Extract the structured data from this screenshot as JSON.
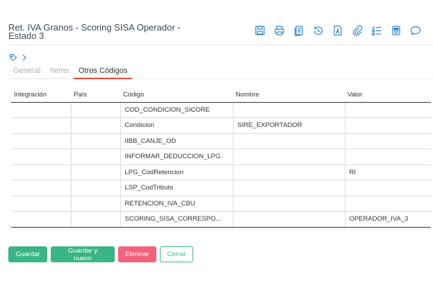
{
  "header": {
    "title": "Ret. IVA Granos - Scoring SISA Operador - Estado 3"
  },
  "toolbar": [
    {
      "name": "save-icon"
    },
    {
      "name": "print-icon"
    },
    {
      "name": "copy-icon"
    },
    {
      "name": "history-icon"
    },
    {
      "name": "pdf-icon"
    },
    {
      "name": "attach-icon"
    },
    {
      "name": "checklist-icon"
    },
    {
      "name": "notes-icon"
    },
    {
      "name": "comment-icon"
    }
  ],
  "tabs": [
    {
      "label": "General"
    },
    {
      "label": "Items"
    },
    {
      "label": "Otros Códigos"
    }
  ],
  "table": {
    "headers": [
      "Integración",
      "País",
      "Código",
      "Nombre",
      "Valor"
    ],
    "rows": [
      [
        "",
        "",
        "COD_CONDICION_SICORE",
        "",
        ""
      ],
      [
        "",
        "",
        "Condicion",
        "SIRE_EXPORTADOR",
        ""
      ],
      [
        "",
        "",
        "IIBB_CANJE_OD",
        "",
        ""
      ],
      [
        "",
        "",
        "INFORMAR_DEDUCCION_LPG",
        "",
        ""
      ],
      [
        "",
        "",
        "LPG_CodRetencion",
        "",
        "RI"
      ],
      [
        "",
        "",
        "LSP_CodTributo",
        "",
        ""
      ],
      [
        "",
        "",
        "RETENCION_IVA_CBU",
        "",
        ""
      ],
      [
        "",
        "",
        "SCORING_SISA_CORRESPO...",
        "",
        "OPERADOR_IVA_3"
      ]
    ]
  },
  "buttons": {
    "save": "Guardar",
    "save_new": "Guardar y nuevo",
    "delete": "Eliminar",
    "close": "Cerrar"
  },
  "colors": {
    "accent": "#2f86c9",
    "tab_active": "#e8462e",
    "green": "#3ab588",
    "pink": "#f3617a"
  }
}
